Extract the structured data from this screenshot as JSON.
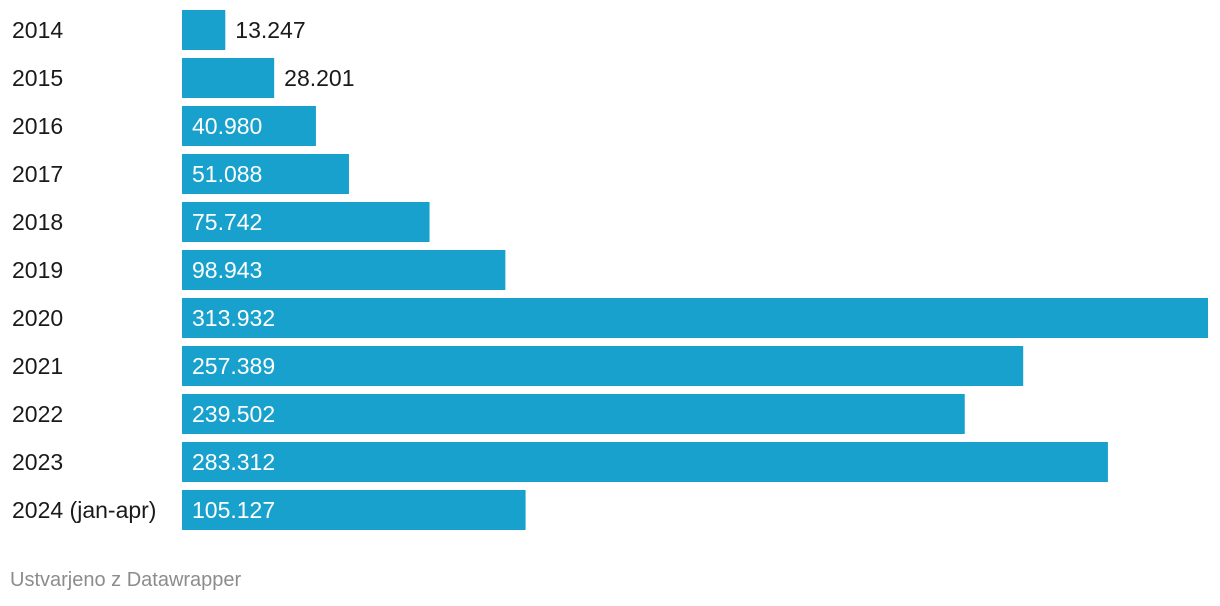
{
  "chart_data": {
    "type": "bar",
    "orientation": "horizontal",
    "categories": [
      "2014",
      "2015",
      "2016",
      "2017",
      "2018",
      "2019",
      "2020",
      "2021",
      "2022",
      "2023",
      "2024 (jan-apr)"
    ],
    "values": [
      13247,
      28201,
      40980,
      51088,
      75742,
      98943,
      313932,
      257389,
      239502,
      283312,
      105127
    ],
    "value_labels": [
      "13.247",
      "28.201",
      "40.980",
      "51.088",
      "75.742",
      "98.943",
      "313.932",
      "257.389",
      "239.502",
      "283.312",
      "105.127"
    ],
    "xlim": [
      0,
      313932
    ],
    "grid": false,
    "bar_color": "#18a1cd",
    "label_inside_color": "#ffffff",
    "label_outside_color": "#1a1a1a"
  },
  "footer": {
    "credit": "Ustvarjeno z Datawrapper"
  }
}
